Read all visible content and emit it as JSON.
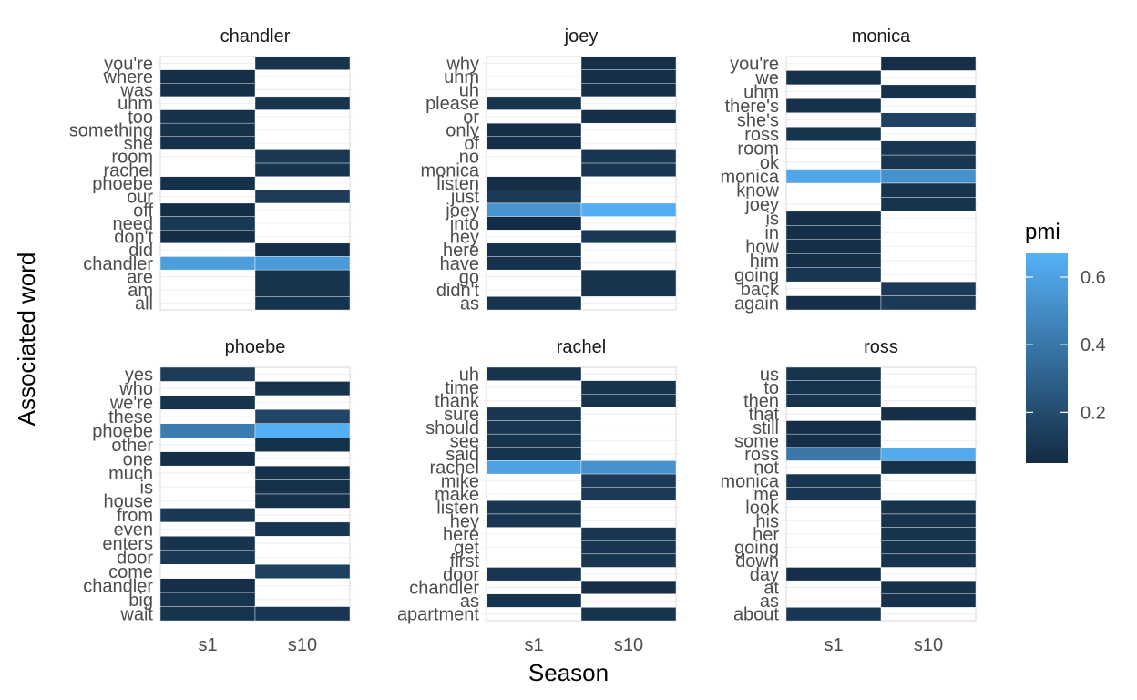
{
  "chart_data": {
    "type": "heatmap",
    "xlabel": "Season",
    "ylabel": "Associated word",
    "x_categories": [
      "s1",
      "s10"
    ],
    "legend": {
      "title": "pmi",
      "range": [
        0.05,
        0.67
      ],
      "ticks": [
        0.2,
        0.4,
        0.6
      ],
      "tick_labels": [
        "0.2",
        "0.4",
        "0.6"
      ],
      "low_color": "#132B43",
      "high_color": "#56B1F7"
    },
    "panels": [
      {
        "title": "chandler",
        "words": [
          "you're",
          "where",
          "was",
          "uhm",
          "too",
          "something",
          "she",
          "room",
          "rachel",
          "phoebe",
          "our",
          "off",
          "need",
          "don't",
          "did",
          "chandler",
          "are",
          "am",
          "all"
        ],
        "s1": [
          null,
          0.07,
          0.07,
          null,
          0.08,
          0.08,
          0.08,
          null,
          null,
          0.08,
          null,
          0.06,
          0.11,
          0.06,
          null,
          0.58,
          null,
          null,
          null
        ],
        "s10": [
          0.09,
          null,
          null,
          0.09,
          null,
          null,
          null,
          0.11,
          0.09,
          null,
          0.13,
          null,
          null,
          null,
          0.07,
          0.57,
          0.09,
          0.09,
          0.09
        ]
      },
      {
        "title": "joey",
        "words": [
          "why",
          "uhm",
          "uh",
          "please",
          "or",
          "only",
          "of",
          "no",
          "monica",
          "listen",
          "just",
          "joey",
          "into",
          "hey",
          "here",
          "have",
          "go",
          "didn't",
          "as"
        ],
        "s1": [
          null,
          null,
          null,
          0.09,
          null,
          0.07,
          0.07,
          null,
          null,
          0.07,
          0.12,
          0.53,
          0.06,
          null,
          0.08,
          0.08,
          null,
          null,
          0.09
        ],
        "s10": [
          0.07,
          0.07,
          0.07,
          null,
          0.07,
          null,
          null,
          0.1,
          0.1,
          null,
          null,
          0.65,
          null,
          0.11,
          null,
          null,
          0.09,
          0.09,
          null
        ]
      },
      {
        "title": "monica",
        "words": [
          "you're",
          "we",
          "uhm",
          "there's",
          "she's",
          "ross",
          "room",
          "ok",
          "monica",
          "know",
          "joey",
          "is",
          "in",
          "how",
          "him",
          "going",
          "back",
          "again"
        ],
        "s1": [
          null,
          0.08,
          null,
          0.08,
          null,
          0.09,
          null,
          null,
          0.62,
          null,
          null,
          0.07,
          0.07,
          0.07,
          0.07,
          0.1,
          null,
          0.07
        ],
        "s10": [
          0.07,
          null,
          0.08,
          null,
          0.15,
          null,
          0.1,
          0.1,
          0.52,
          0.09,
          0.09,
          null,
          null,
          null,
          null,
          null,
          0.12,
          0.12
        ]
      },
      {
        "title": "phoebe",
        "words": [
          "yes",
          "who",
          "we're",
          "these",
          "phoebe",
          "other",
          "one",
          "much",
          "is",
          "house",
          "from",
          "even",
          "enters",
          "door",
          "come",
          "chandler",
          "big",
          "wait"
        ],
        "s1": [
          0.13,
          null,
          0.09,
          null,
          0.43,
          null,
          0.07,
          null,
          null,
          null,
          0.11,
          null,
          0.09,
          0.11,
          null,
          0.07,
          0.09,
          0.09
        ],
        "s10": [
          null,
          0.09,
          null,
          0.17,
          0.66,
          0.08,
          null,
          0.08,
          0.08,
          0.08,
          null,
          0.1,
          null,
          null,
          0.15,
          null,
          null,
          0.1
        ]
      },
      {
        "title": "rachel",
        "words": [
          "uh",
          "time",
          "thank",
          "sure",
          "should",
          "see",
          "said",
          "rachel",
          "mike",
          "make",
          "listen",
          "hey",
          "here",
          "get",
          "first",
          "door",
          "chandler",
          "as",
          "apartment"
        ],
        "s1": [
          0.09,
          null,
          null,
          0.1,
          0.1,
          0.09,
          0.09,
          0.6,
          null,
          null,
          0.1,
          0.1,
          null,
          null,
          null,
          0.1,
          null,
          0.09,
          null
        ],
        "s10": [
          null,
          0.09,
          0.09,
          null,
          null,
          null,
          null,
          0.52,
          0.12,
          0.12,
          null,
          null,
          0.1,
          0.1,
          0.1,
          null,
          0.07,
          null,
          0.09
        ]
      },
      {
        "title": "ross",
        "words": [
          "us",
          "to",
          "then",
          "that",
          "still",
          "some",
          "ross",
          "not",
          "monica",
          "me",
          "look",
          "his",
          "her",
          "going",
          "down",
          "day",
          "at",
          "as",
          "about"
        ],
        "s1": [
          0.09,
          0.09,
          0.09,
          null,
          0.07,
          0.07,
          0.4,
          null,
          0.1,
          0.1,
          null,
          null,
          null,
          null,
          null,
          0.07,
          null,
          null,
          0.1
        ],
        "s10": [
          null,
          null,
          null,
          0.07,
          null,
          null,
          0.64,
          0.08,
          null,
          null,
          0.09,
          0.09,
          0.09,
          0.09,
          0.09,
          null,
          0.08,
          0.08,
          null
        ]
      }
    ]
  }
}
